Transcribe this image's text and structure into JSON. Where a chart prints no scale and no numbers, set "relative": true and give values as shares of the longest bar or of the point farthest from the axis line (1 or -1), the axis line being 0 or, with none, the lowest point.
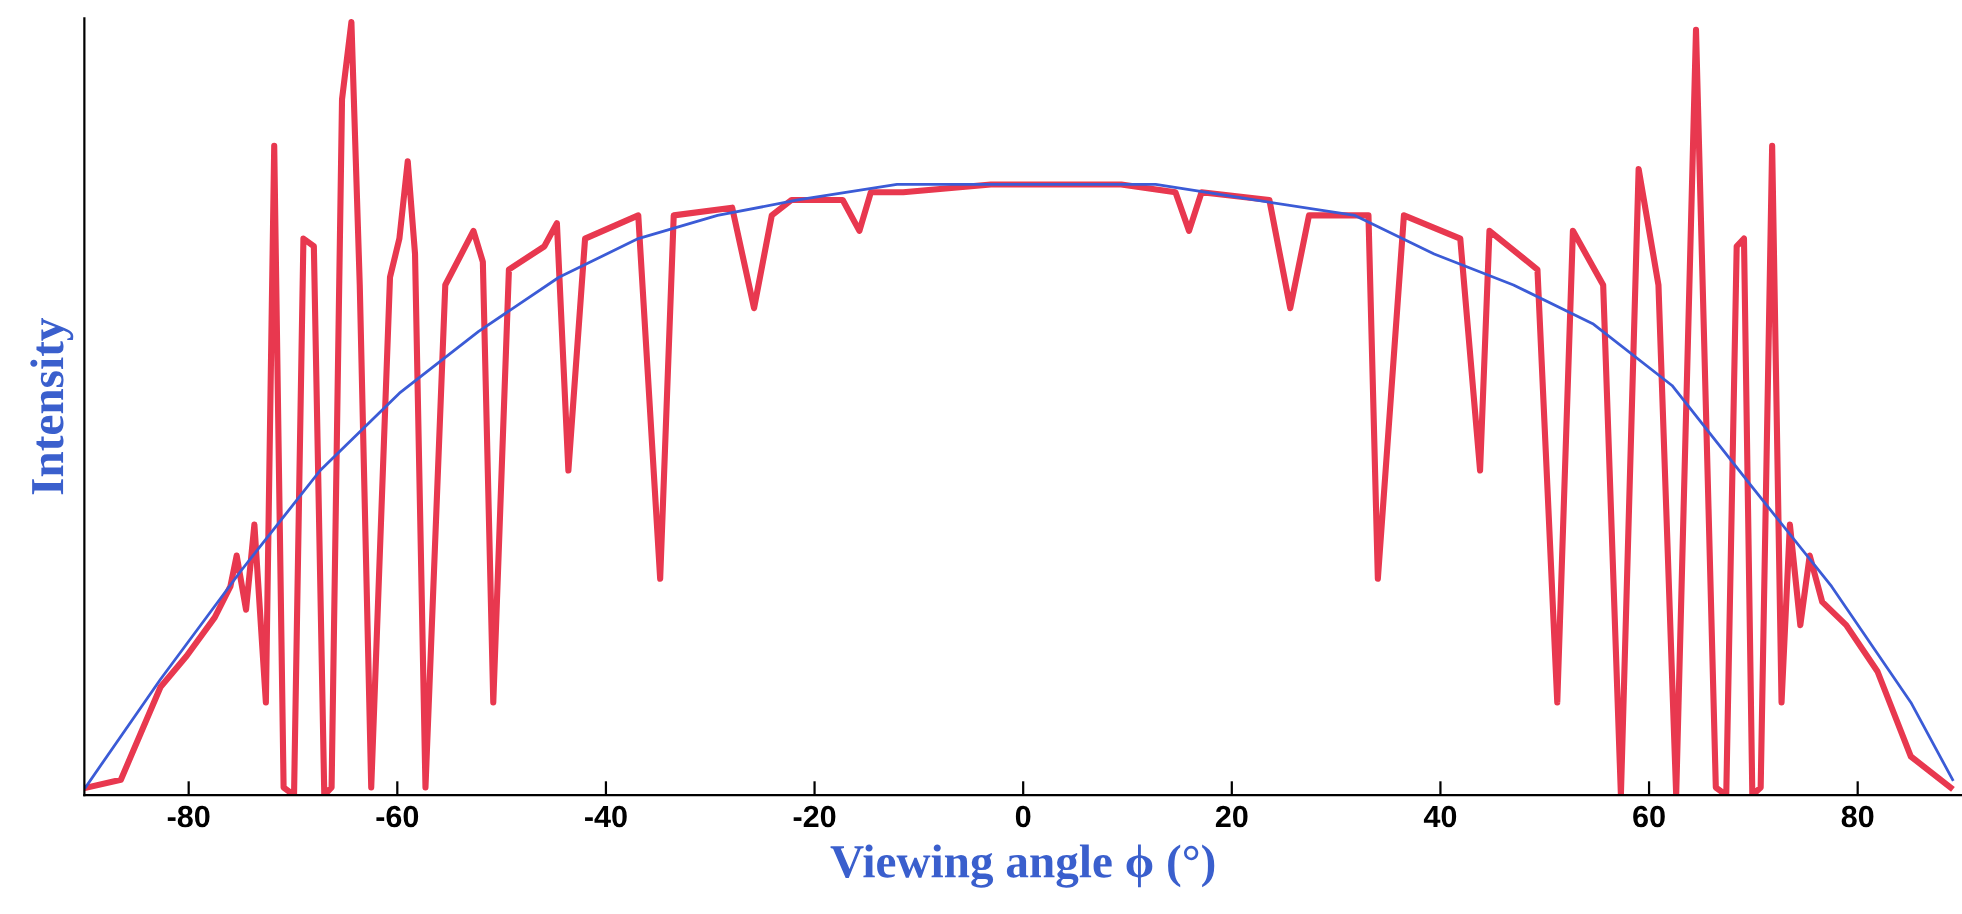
{
  "chart_data": {
    "type": "line",
    "relative": true,
    "xlabel": "Viewing angle ϕ (°)",
    "ylabel": "Intensity",
    "xlim": [
      -90,
      90
    ],
    "xticks": [
      -80,
      -60,
      -40,
      -20,
      0,
      20,
      40,
      60,
      80
    ],
    "grid": false,
    "legend": false,
    "marker": "none",
    "line_style": "solid",
    "series": [
      {
        "color": "#e8384f",
        "x": [
          -89.7,
          -86.5,
          -82.7,
          -80.2,
          -77.5,
          -76.0,
          -75.4,
          -74.5,
          -73.7,
          -72.6,
          -71.8,
          -70.9,
          -69.9,
          -69.0,
          -68.0,
          -67.0,
          -66.3,
          -65.3,
          -64.4,
          -63.6,
          -62.5,
          -60.7,
          -59.8,
          -59.0,
          -58.3,
          -57.3,
          -55.4,
          -52.7,
          -51.8,
          -50.8,
          -49.3,
          -45.9,
          -44.7,
          -43.6,
          -42.0,
          -36.9,
          -34.8,
          -33.5,
          -27.9,
          -25.8,
          -24.1,
          -22.2,
          -17.3,
          -15.7,
          -14.6,
          -11.5,
          -3.1,
          2.6,
          9.4,
          14.6,
          15.9,
          17.1,
          23.6,
          25.6,
          27.4,
          33.1,
          34.0,
          36.5,
          41.9,
          43.8,
          44.7,
          49.3,
          51.2,
          52.7,
          55.6,
          57.3,
          59.0,
          60.9,
          62.6,
          64.5,
          66.4,
          67.4,
          68.4,
          69.1,
          69.9,
          70.7,
          71.8,
          72.7,
          73.5,
          74.5,
          75.4,
          76.6,
          78.9,
          81.9,
          85.1,
          88.9
        ],
        "values": [
          0.01,
          0.02,
          0.14,
          0.18,
          0.23,
          0.27,
          0.31,
          0.24,
          0.35,
          0.12,
          0.84,
          0.01,
          0,
          0.72,
          0.71,
          0,
          0.01,
          0.9,
          1.0,
          0.66,
          0.01,
          0.67,
          0.72,
          0.82,
          0.7,
          0.01,
          0.66,
          0.73,
          0.69,
          0.12,
          0.68,
          0.71,
          0.74,
          0.42,
          0.72,
          0.75,
          0.28,
          0.75,
          0.76,
          0.63,
          0.75,
          0.77,
          0.77,
          0.73,
          0.78,
          0.78,
          0.79,
          0.79,
          0.79,
          0.78,
          0.73,
          0.78,
          0.77,
          0.63,
          0.75,
          0.75,
          0.28,
          0.75,
          0.72,
          0.42,
          0.73,
          0.68,
          0.12,
          0.73,
          0.66,
          0,
          0.81,
          0.66,
          0,
          0.99,
          0.01,
          0,
          0.71,
          0.72,
          0,
          0.01,
          0.84,
          0.12,
          0.35,
          0.22,
          0.31,
          0.25,
          0.22,
          0.16,
          0.05,
          0.01
        ]
      },
      {
        "color": "#3b5bd6",
        "x": [
          -89.9,
          -82.7,
          -75.0,
          -67.4,
          -59.8,
          -52.2,
          -44.5,
          -36.9,
          -29.3,
          -21.6,
          -12.1,
          -0.1,
          12.7,
          22.2,
          31.8,
          39.4,
          47.0,
          54.6,
          62.2,
          69.8,
          77.5,
          85.1,
          89.1
        ],
        "values": [
          0.01,
          0.15,
          0.29,
          0.42,
          0.52,
          0.6,
          0.67,
          0.72,
          0.75,
          0.77,
          0.79,
          0.79,
          0.79,
          0.77,
          0.75,
          0.7,
          0.66,
          0.61,
          0.53,
          0.4,
          0.27,
          0.12,
          0.02
        ]
      }
    ]
  }
}
